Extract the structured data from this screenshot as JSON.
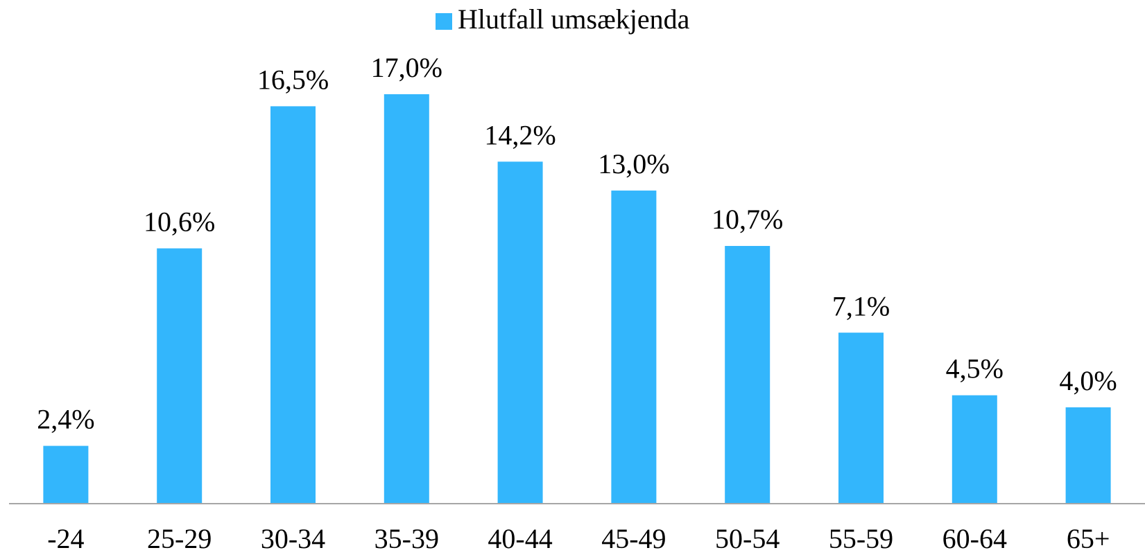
{
  "chart_data": {
    "type": "bar",
    "categories": [
      "-24",
      "25-29",
      "30-34",
      "35-39",
      "40-44",
      "45-49",
      "50-54",
      "55-59",
      "60-64",
      "65+"
    ],
    "series": [
      {
        "name": "Hlutfall umsækjenda",
        "color": "#33b6fc",
        "values": [
          2.4,
          10.6,
          16.5,
          17.0,
          14.2,
          13.0,
          10.7,
          7.1,
          4.5,
          4.0
        ],
        "value_labels": [
          "2,4%",
          "10,6%",
          "16,5%",
          "17,0%",
          "14,2%",
          "13,0%",
          "10,7%",
          "7,1%",
          "4,5%",
          "4,0%"
        ]
      }
    ],
    "legend": "top"
  }
}
